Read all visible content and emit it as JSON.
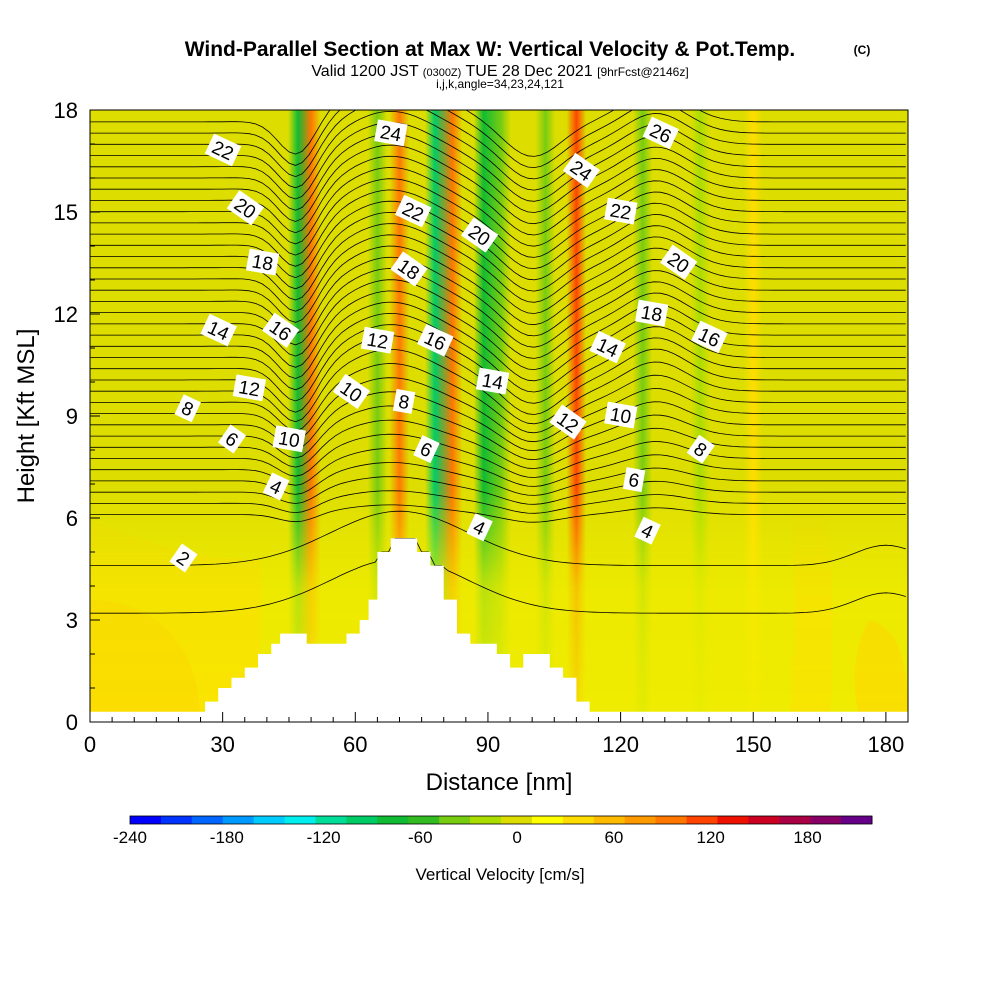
{
  "chart_data": {
    "type": "heatmap",
    "title": "Wind-Parallel Section at Max W: Vertical Velocity & Pot.Temp.",
    "title_mark": "(C)",
    "subtitle_main": "Valid 1200 JST",
    "subtitle_utc": "(0300Z)",
    "subtitle_date": "TUE 28 Dec 2021",
    "subtitle_fcst": "[9hrFcst@2146z]",
    "subtitle_indices": "i,j,k,angle=34,23,24,121",
    "xlabel": "Distance [nm]",
    "ylabel": "Height [Kft MSL]",
    "xlim": [
      0,
      185
    ],
    "ylim": [
      0,
      18
    ],
    "x_ticks": [
      "0",
      "30",
      "60",
      "90",
      "120",
      "150",
      "180"
    ],
    "y_ticks": [
      "0",
      "3",
      "6",
      "9",
      "12",
      "15",
      "18"
    ],
    "colorbar": {
      "label": "Vertical Velocity [cm/s]",
      "range": [
        -240,
        220
      ],
      "tick_labels": [
        "-240",
        "-180",
        "-120",
        "-60",
        "0",
        "60",
        "120",
        "180"
      ],
      "colors": [
        "#0000ff",
        "#0033ff",
        "#0066ff",
        "#0099ff",
        "#00ccff",
        "#00eeee",
        "#00dd99",
        "#00cc66",
        "#11bb33",
        "#33bb22",
        "#77cc11",
        "#aadd00",
        "#dddd00",
        "#ffff00",
        "#ffdd00",
        "#ffbb00",
        "#ff9900",
        "#ff7700",
        "#ff4400",
        "#ee1100",
        "#cc0022",
        "#aa0044",
        "#880066",
        "#660088"
      ]
    },
    "velocity_bands_cm_s": [
      {
        "x": 47,
        "value": -70
      },
      {
        "x": 50,
        "value": 90
      },
      {
        "x": 65,
        "value": -30
      },
      {
        "x": 70,
        "value": 90
      },
      {
        "x": 78,
        "value": -90
      },
      {
        "x": 82,
        "value": 100
      },
      {
        "x": 89,
        "value": -80
      },
      {
        "x": 93,
        "value": -40
      },
      {
        "x": 103,
        "value": -40
      },
      {
        "x": 110,
        "value": 110
      },
      {
        "x": 125,
        "value": -30
      },
      {
        "x": 138,
        "value": -25
      },
      {
        "x": 150,
        "value": 30
      }
    ],
    "terrain": [
      [
        0,
        0.3
      ],
      [
        26,
        0.3
      ],
      [
        26,
        0.6
      ],
      [
        29,
        0.6
      ],
      [
        29,
        1.0
      ],
      [
        32,
        1.0
      ],
      [
        32,
        1.3
      ],
      [
        35,
        1.3
      ],
      [
        35,
        1.6
      ],
      [
        38,
        1.6
      ],
      [
        38,
        2.0
      ],
      [
        41,
        2.0
      ],
      [
        41,
        2.3
      ],
      [
        43,
        2.3
      ],
      [
        43,
        2.6
      ],
      [
        49,
        2.6
      ],
      [
        49,
        2.3
      ],
      [
        58,
        2.3
      ],
      [
        58,
        2.6
      ],
      [
        61,
        2.6
      ],
      [
        61,
        3.0
      ],
      [
        63,
        3.0
      ],
      [
        63,
        3.6
      ],
      [
        65,
        3.6
      ],
      [
        65,
        5.0
      ],
      [
        68,
        5.0
      ],
      [
        68,
        5.4
      ],
      [
        74,
        5.4
      ],
      [
        74,
        5.0
      ],
      [
        77,
        5.0
      ],
      [
        77,
        4.6
      ],
      [
        80,
        4.6
      ],
      [
        80,
        3.6
      ],
      [
        83,
        3.6
      ],
      [
        83,
        2.6
      ],
      [
        86,
        2.6
      ],
      [
        86,
        2.3
      ],
      [
        92,
        2.3
      ],
      [
        92,
        2.0
      ],
      [
        95,
        2.0
      ],
      [
        95,
        1.6
      ],
      [
        98,
        1.6
      ],
      [
        98,
        2.0
      ],
      [
        104,
        2.0
      ],
      [
        104,
        1.6
      ],
      [
        107,
        1.6
      ],
      [
        107,
        1.3
      ],
      [
        110,
        1.3
      ],
      [
        110,
        0.6
      ],
      [
        113,
        0.6
      ],
      [
        113,
        0.3
      ],
      [
        185,
        0.3
      ]
    ],
    "contour_labels": [
      {
        "text": "22",
        "x": 30,
        "y": 16.8
      },
      {
        "text": "20",
        "x": 35,
        "y": 15.1
      },
      {
        "text": "18",
        "x": 39,
        "y": 13.5
      },
      {
        "text": "14",
        "x": 29,
        "y": 11.5
      },
      {
        "text": "16",
        "x": 43,
        "y": 11.5
      },
      {
        "text": "12",
        "x": 36,
        "y": 9.8
      },
      {
        "text": "8",
        "x": 22,
        "y": 9.2
      },
      {
        "text": "6",
        "x": 32,
        "y": 8.3
      },
      {
        "text": "10",
        "x": 45,
        "y": 8.3
      },
      {
        "text": "4",
        "x": 42,
        "y": 6.9
      },
      {
        "text": "2",
        "x": 21,
        "y": 4.8
      },
      {
        "text": "24",
        "x": 68,
        "y": 17.3
      },
      {
        "text": "22",
        "x": 73,
        "y": 15.0
      },
      {
        "text": "18",
        "x": 72,
        "y": 13.3
      },
      {
        "text": "12",
        "x": 65,
        "y": 11.2
      },
      {
        "text": "16",
        "x": 78,
        "y": 11.2
      },
      {
        "text": "10",
        "x": 59,
        "y": 9.7
      },
      {
        "text": "8",
        "x": 71,
        "y": 9.4
      },
      {
        "text": "6",
        "x": 76,
        "y": 8.0
      },
      {
        "text": "20",
        "x": 88,
        "y": 14.3
      },
      {
        "text": "14",
        "x": 91,
        "y": 10.0
      },
      {
        "text": "4",
        "x": 88,
        "y": 5.7
      },
      {
        "text": "24",
        "x": 111,
        "y": 16.2
      },
      {
        "text": "22",
        "x": 120,
        "y": 15.0
      },
      {
        "text": "14",
        "x": 117,
        "y": 11.0
      },
      {
        "text": "12",
        "x": 108,
        "y": 8.8
      },
      {
        "text": "10",
        "x": 120,
        "y": 9.0
      },
      {
        "text": "26",
        "x": 129,
        "y": 17.3
      },
      {
        "text": "20",
        "x": 133,
        "y": 13.5
      },
      {
        "text": "18",
        "x": 127,
        "y": 12.0
      },
      {
        "text": "16",
        "x": 140,
        "y": 11.3
      },
      {
        "text": "8",
        "x": 138,
        "y": 8.0
      },
      {
        "text": "6",
        "x": 123,
        "y": 7.1
      },
      {
        "text": "4",
        "x": 126,
        "y": 5.6
      }
    ],
    "grid": false
  }
}
